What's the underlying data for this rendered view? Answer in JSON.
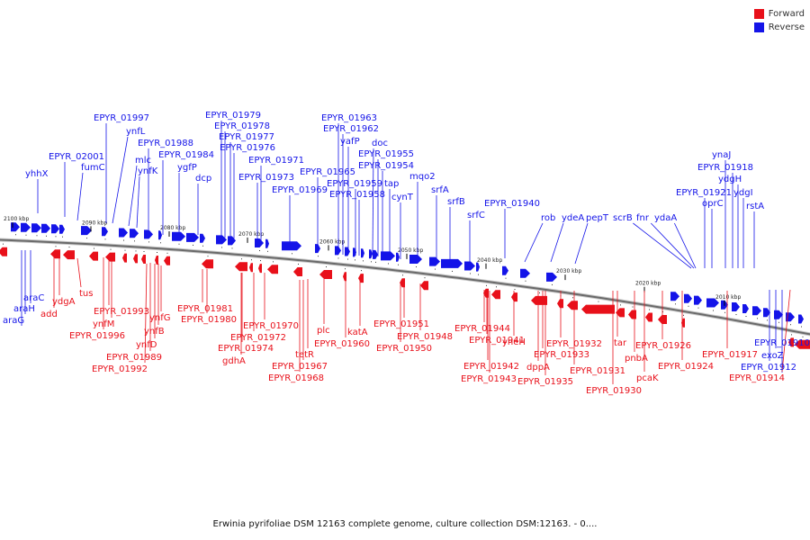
{
  "legend": {
    "forward_label": "Forward",
    "reverse_label": "Reverse",
    "forward_color": "#e8101a",
    "reverse_color": "#1414e8"
  },
  "caption": "Erwinia pyrifoliae DSM 12163 complete genome, culture collection DSM:12163. - 0....",
  "axis": {
    "tick_labels": [
      "2100 kbp",
      "2090 kbp",
      "2080 kbp",
      "2070 kbp",
      "2060 kbp",
      "2050 kbp",
      "2040 kbp",
      "2030 kbp",
      "2020 kbp",
      "2010 kbp"
    ]
  },
  "reverse_labels": [
    "yhhX",
    "EPYR_02001",
    "fumC",
    "EPYR_01997",
    "ynfL",
    "mlc",
    "ynfK",
    "EPYR_01988",
    "EPYR_01984",
    "ygfP",
    "dcp",
    "EPYR_01979",
    "EPYR_01978",
    "EPYR_01977",
    "EPYR_01976",
    "EPYR_01971",
    "EPYR_01973",
    "EPYR_01969",
    "EPYR_01965",
    "EPYR_01963",
    "EPYR_01962",
    "yafP",
    "EPYR_01959",
    "EPYR_01958",
    "doc",
    "EPYR_01955",
    "EPYR_01954",
    "tap",
    "cynT",
    "mqo2",
    "srfA",
    "srfB",
    "srfC",
    "EPYR_01940",
    "rob",
    "ydeA",
    "pepT",
    "scrB",
    "fnr",
    "ydaA",
    "EPYR_01921",
    "oprC",
    "ynaJ",
    "EPYR_01918",
    "ydgH",
    "ydgI",
    "rstA",
    "araG",
    "araH",
    "araC",
    "exoZ",
    "EPYR_01910",
    "EPYR_01912"
  ],
  "forward_labels": [
    "add",
    "ydgA",
    "tus",
    "EPYR_01993",
    "ynfM",
    "EPYR_01996",
    "ynfG",
    "ynfB",
    "ynfD",
    "EPYR_01989",
    "EPYR_01992",
    "EPYR_01981",
    "EPYR_01980",
    "EPYR_01970",
    "EPYR_01972",
    "EPYR_01974",
    "gdhA",
    "plc",
    "EPYR_01960",
    "tetR",
    "EPYR_01967",
    "EPYR_01968",
    "katA",
    "EPYR_01951",
    "EPYR_01948",
    "EPYR_01950",
    "EPYR_01944",
    "EPYR_01941",
    "yneH",
    "EPYR_01942",
    "EPYR_01943",
    "EPYR_01932",
    "EPYR_01933",
    "dppA",
    "EPYR_01935",
    "EPYR_01931",
    "tar",
    "pnbA",
    "EPYR_01930",
    "pcaK",
    "EPYR_01926",
    "EPYR_01924",
    "EPYR_01917",
    "EPYR_01914"
  ]
}
